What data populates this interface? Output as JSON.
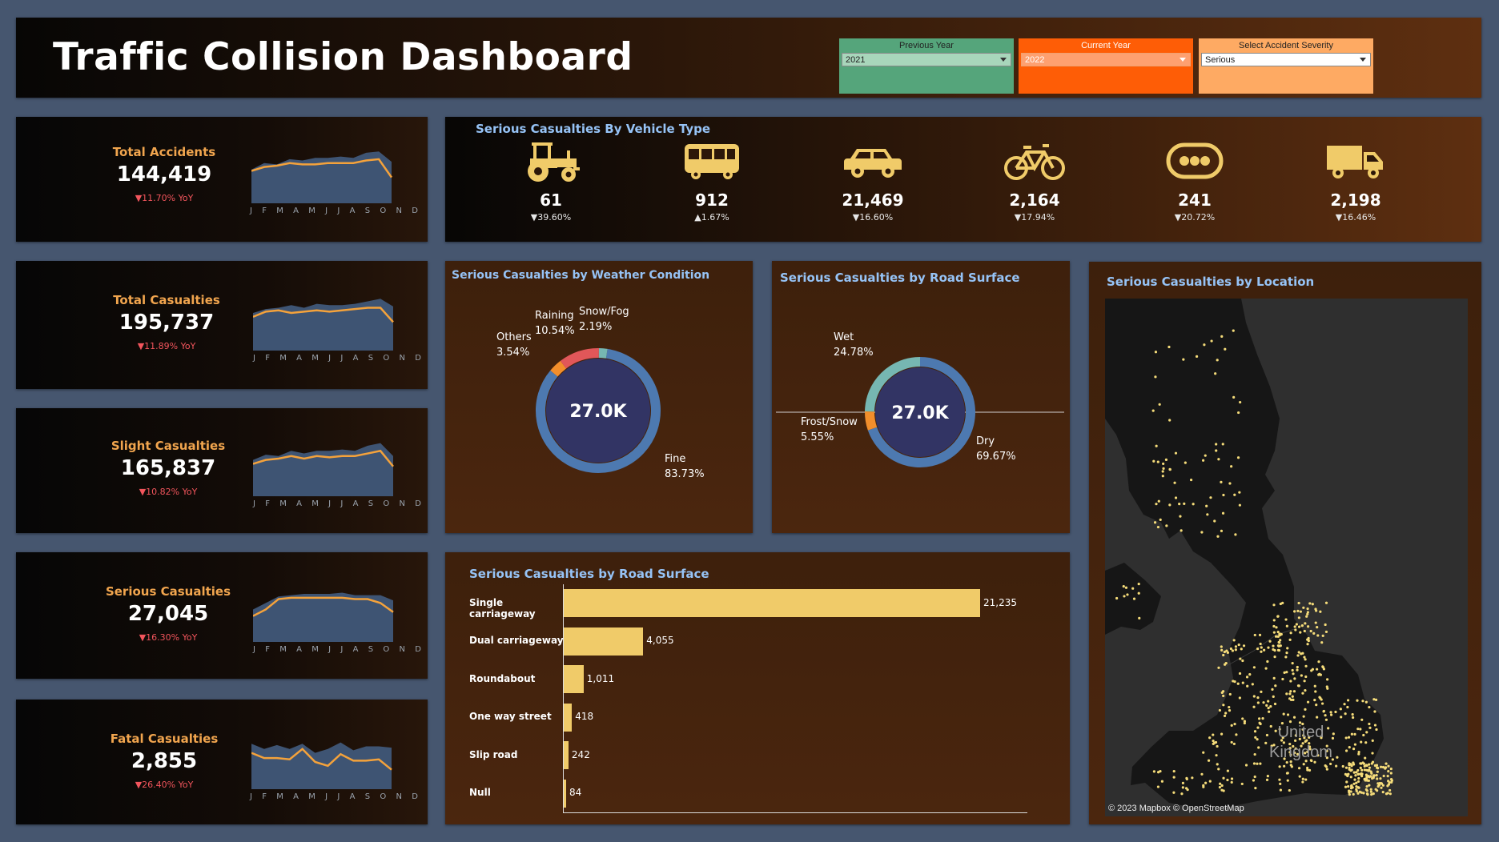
{
  "header": {
    "title": "Traffic Collision Dashboard",
    "filters": [
      {
        "label": "Previous Year",
        "value": "2021"
      },
      {
        "label": "Current Year",
        "value": "2022"
      },
      {
        "label": "Select Accident Severity",
        "value": "Serious"
      }
    ]
  },
  "months": [
    "J",
    "F",
    "M",
    "A",
    "M",
    "J",
    "J",
    "A",
    "S",
    "O",
    "N",
    "D"
  ],
  "kpis": [
    {
      "label": "Total Accidents",
      "value": "144,419",
      "yoy": "▼11.70% YoY"
    },
    {
      "label": "Total Casualties",
      "value": "195,737",
      "yoy": "▼11.89% YoY"
    },
    {
      "label": "Slight Casualties",
      "value": "165,837",
      "yoy": "▼10.82% YoY"
    },
    {
      "label": "Serious Casualties",
      "value": "27,045",
      "yoy": "▼16.30% YoY"
    },
    {
      "label": "Fatal Casualties",
      "value": "2,855",
      "yoy": "▼26.40% YoY"
    }
  ],
  "vehicle": {
    "title": "Serious Casualties By Vehicle Type",
    "items": [
      {
        "icon": "tractor-icon",
        "value": "61",
        "change": "▼39.60%"
      },
      {
        "icon": "bus-icon",
        "value": "912",
        "change": "▲1.67%"
      },
      {
        "icon": "car-icon",
        "value": "21,469",
        "change": "▼16.60%"
      },
      {
        "icon": "bicycle-icon",
        "value": "2,164",
        "change": "▼17.94%"
      },
      {
        "icon": "others-icon",
        "value": "241",
        "change": "▼20.72%"
      },
      {
        "icon": "truck-icon",
        "value": "2,198",
        "change": "▼16.46%"
      }
    ]
  },
  "weather": {
    "title": "Serious Casualties by Weather Condition",
    "center": "27.0K",
    "labels": {
      "raining": "Raining",
      "raining_pct": "10.54%",
      "snow": "Snow/Fog",
      "snow_pct": "2.19%",
      "others": "Others",
      "others_pct": "3.54%",
      "fine": "Fine",
      "fine_pct": "83.73%"
    }
  },
  "surface_donut": {
    "title": "Serious Casualties by Road Surface",
    "center": "27.0K",
    "labels": {
      "wet": "Wet",
      "wet_pct": "24.78%",
      "frost": "Frost/Snow",
      "frost_pct": "5.55%",
      "dry": "Dry",
      "dry_pct": "69.67%"
    }
  },
  "road_bar": {
    "title": "Serious Casualties by Road Surface",
    "categories": [
      {
        "label": "Single carriageway",
        "value": "21,235"
      },
      {
        "label": "Dual carriageway",
        "value": "4,055"
      },
      {
        "label": "Roundabout",
        "value": "1,011"
      },
      {
        "label": "One way street",
        "value": "418"
      },
      {
        "label": "Slip road",
        "value": "242"
      },
      {
        "label": "Null",
        "value": "84"
      }
    ]
  },
  "map": {
    "title": "Serious Casualties by Location",
    "country_line1": "United",
    "country_line2": "Kingdom",
    "credit": "© 2023 Mapbox © OpenStreetMap"
  },
  "chart_data": [
    {
      "type": "pie",
      "title": "Serious Casualties by Weather Condition",
      "categories": [
        "Fine",
        "Raining",
        "Snow/Fog",
        "Others"
      ],
      "values": [
        83.73,
        10.54,
        2.19,
        3.54
      ],
      "colors": [
        "#4d79b0",
        "#e15759",
        "#76b7b2",
        "#f28e2b"
      ]
    },
    {
      "type": "pie",
      "title": "Serious Casualties by Road Surface",
      "categories": [
        "Dry",
        "Wet",
        "Frost/Snow"
      ],
      "values": [
        69.67,
        24.78,
        5.55
      ],
      "colors": [
        "#4d79b0",
        "#76b7b2",
        "#f28e2b"
      ]
    },
    {
      "type": "bar",
      "title": "Serious Casualties by Road Surface",
      "categories": [
        "Single carriageway",
        "Dual carriageway",
        "Roundabout",
        "One way street",
        "Slip road",
        "Null"
      ],
      "values": [
        21235,
        4055,
        1011,
        418,
        242,
        84
      ]
    }
  ]
}
